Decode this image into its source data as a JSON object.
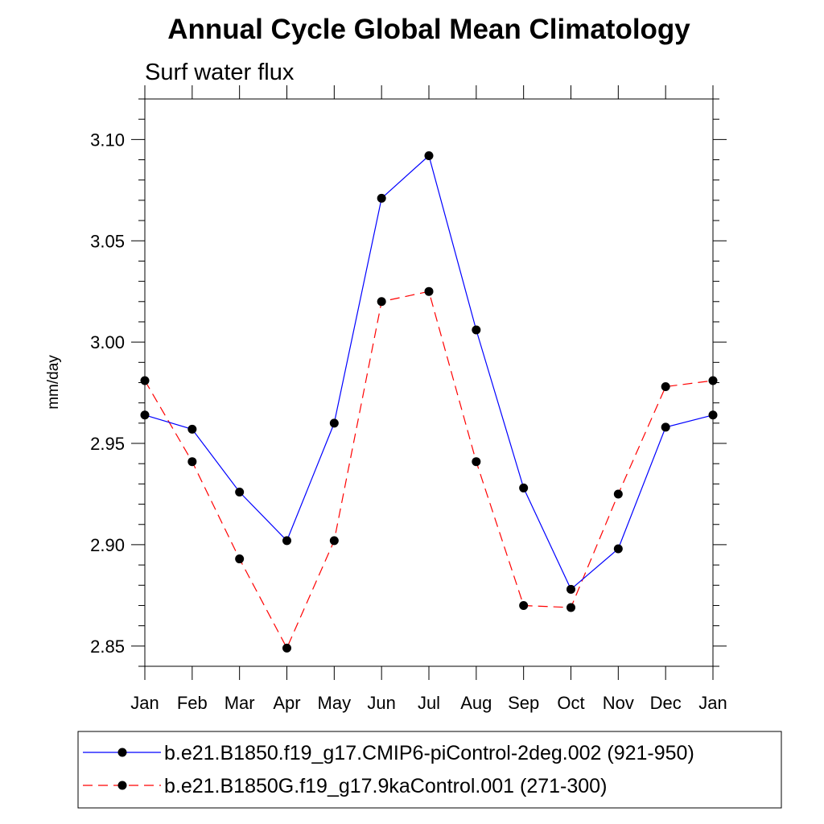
{
  "chart_data": {
    "type": "line",
    "title": "Annual Cycle Global Mean Climatology",
    "subtitle": "Surf water flux",
    "xlabel": "",
    "ylabel": "mm/day",
    "categories": [
      "Jan",
      "Feb",
      "Mar",
      "Apr",
      "May",
      "Jun",
      "Jul",
      "Aug",
      "Sep",
      "Oct",
      "Nov",
      "Dec",
      "Jan"
    ],
    "ylim": [
      2.84,
      3.12
    ],
    "yticks": [
      2.85,
      2.9,
      2.95,
      3.0,
      3.05,
      3.1
    ],
    "ytick_labels": [
      "2.85",
      "2.90",
      "2.95",
      "3.00",
      "3.05",
      "3.10"
    ],
    "grid": false,
    "legend_position": "bottom",
    "series": [
      {
        "name": "b.e21.B1850.f19_g17.CMIP6-piControl-2deg.002 (921-950)",
        "color": "#0000ff",
        "line_style": "solid",
        "marker": "filled-circle",
        "values": [
          2.964,
          2.957,
          2.926,
          2.902,
          2.96,
          3.071,
          3.092,
          3.006,
          2.928,
          2.878,
          2.898,
          2.958,
          2.964
        ]
      },
      {
        "name": "b.e21.B1850G.f19_g17.9kaControl.001 (271-300)",
        "color": "#ff0000",
        "line_style": "dashed",
        "marker": "filled-circle",
        "values": [
          2.981,
          2.941,
          2.893,
          2.849,
          2.902,
          3.02,
          3.025,
          2.941,
          2.87,
          2.869,
          2.925,
          2.978,
          2.981
        ]
      }
    ]
  }
}
